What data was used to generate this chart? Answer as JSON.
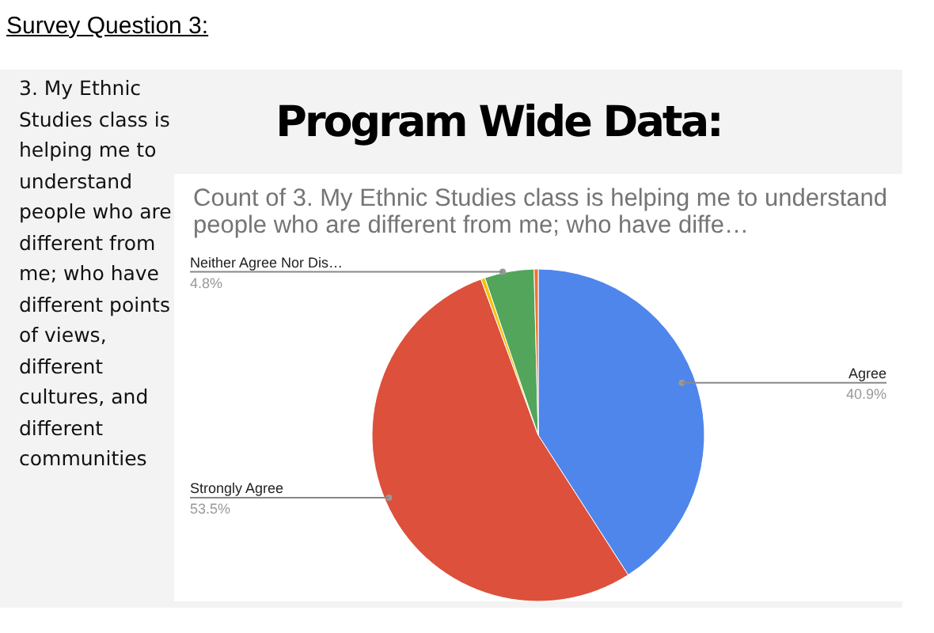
{
  "chart_data": {
    "type": "pie",
    "title": "Program Wide Data:",
    "subtitle": "Count of 3. My Ethnic Studies class is helping me to understand people who are different from me; who have diffe…",
    "annotations": [
      "Survey Question 3:",
      "3. My Ethnic Studies class is helping me to understand people who are different from me; who have different points of views, different cultures, and different communities"
    ],
    "categories": [
      "Agree",
      "Strongly Agree",
      null,
      "Neither Agree Nor Dis…",
      null
    ],
    "values": [
      40.9,
      53.5,
      0.4,
      4.8,
      0.4
    ],
    "value_labels": [
      "40.9%",
      "53.5%",
      null,
      "4.8%",
      null
    ],
    "colors": [
      "#4f86ec",
      "#dc503c",
      "#f4c20d",
      "#52a55a",
      "#ee7330"
    ],
    "legend": false
  }
}
